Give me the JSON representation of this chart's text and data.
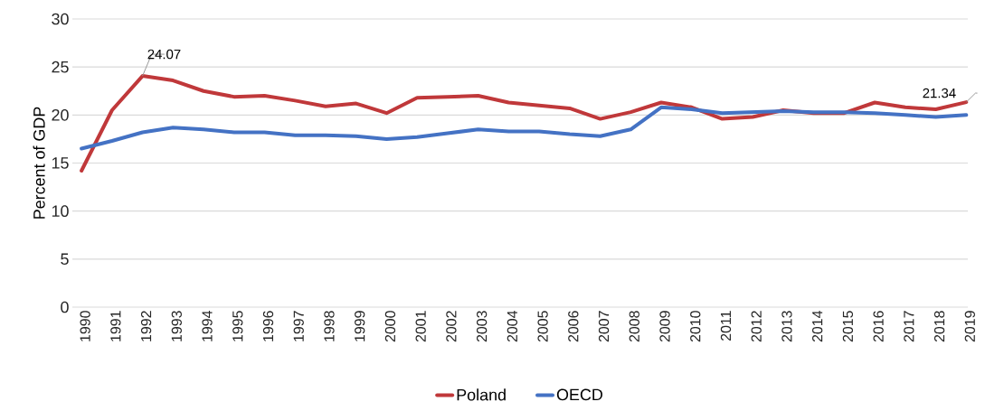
{
  "chart_data": {
    "type": "line",
    "ylabel": "Percent of GDP",
    "categories": [
      "1990",
      "1991",
      "1992",
      "1993",
      "1994",
      "1995",
      "1996",
      "1997",
      "1998",
      "1999",
      "2000",
      "2001",
      "2002",
      "2003",
      "2004",
      "2005",
      "2006",
      "2007",
      "2008",
      "2009",
      "2010",
      "2011",
      "2012",
      "2013",
      "2014",
      "2015",
      "2016",
      "2017",
      "2018",
      "2019"
    ],
    "series": [
      {
        "name": "Poland",
        "color": "#c0383a",
        "values": [
          14.2,
          20.5,
          24.07,
          23.6,
          22.5,
          21.9,
          22.0,
          21.5,
          20.9,
          21.2,
          20.2,
          21.8,
          21.9,
          22.0,
          21.3,
          21.0,
          20.7,
          19.6,
          20.3,
          21.3,
          20.8,
          19.6,
          19.8,
          20.5,
          20.2,
          20.2,
          21.3,
          20.8,
          20.6,
          21.34
        ]
      },
      {
        "name": "OECD",
        "color": "#4472c4",
        "values": [
          16.5,
          17.3,
          18.2,
          18.7,
          18.5,
          18.2,
          18.2,
          17.9,
          17.9,
          17.8,
          17.5,
          17.7,
          18.1,
          18.5,
          18.3,
          18.3,
          18.0,
          17.8,
          18.5,
          20.8,
          20.6,
          20.2,
          20.3,
          20.4,
          20.3,
          20.3,
          20.2,
          20.0,
          19.8,
          20.0
        ]
      }
    ],
    "ylim": [
      0,
      30
    ],
    "yticks": [
      0,
      5,
      10,
      15,
      20,
      25,
      30
    ],
    "grid": "y",
    "legend": "bottom",
    "line_style": "solid",
    "marker": "none",
    "annotations": [
      {
        "text": "24.07",
        "x": "1992",
        "y": 24.07
      },
      {
        "text": "21.34",
        "x": "2019",
        "y": 21.34
      }
    ]
  }
}
